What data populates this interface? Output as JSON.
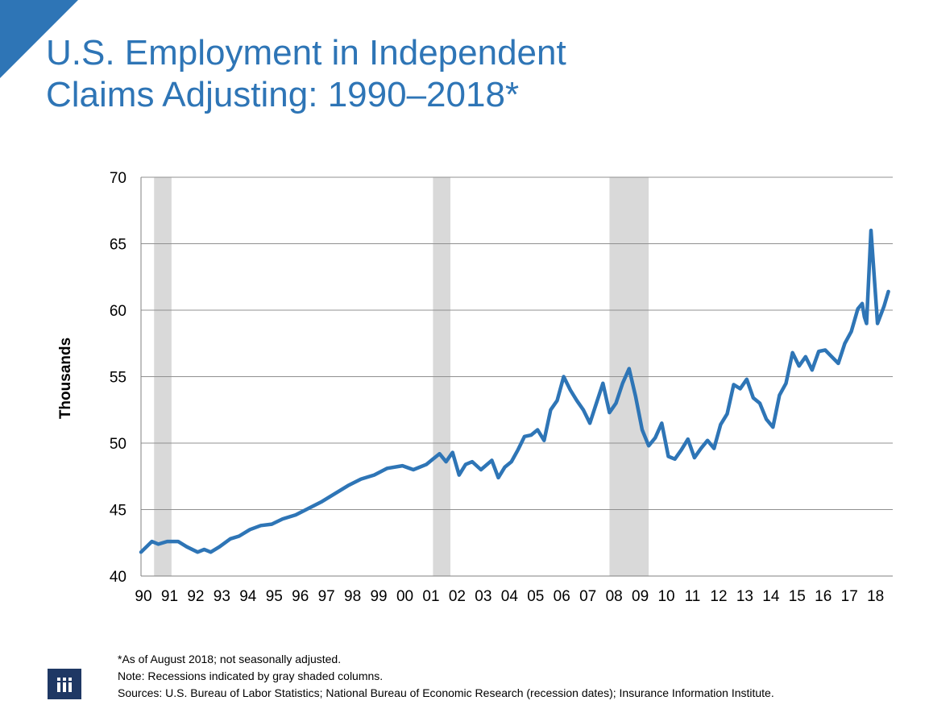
{
  "slide": {
    "title_line1": "U.S. Employment in Independent",
    "title_line2": "Claims Adjusting: 1990–2018*",
    "footnote_asof": "*As of August 2018; not seasonally adjusted.",
    "footnote_note": "Note: Recessions indicated by gray shaded columns.",
    "footnote_sources": "Sources: U.S. Bureau of Labor Statistics;  National Bureau of Economic Research (recession dates); Insurance Information Institute.",
    "accent_color": "#2e75b6",
    "corner_color": "#2e75b6",
    "logo_icon": "iii-logo-icon"
  },
  "chart_data": {
    "type": "line",
    "title": "",
    "xlabel": "",
    "ylabel": "Thousands",
    "ylim": [
      40,
      70
    ],
    "yticks": [
      40,
      45,
      50,
      55,
      60,
      65,
      70
    ],
    "x_tick_labels": [
      "90",
      "91",
      "92",
      "93",
      "94",
      "95",
      "96",
      "97",
      "98",
      "99",
      "00",
      "01",
      "02",
      "03",
      "04",
      "05",
      "06",
      "07",
      "08",
      "09",
      "10",
      "11",
      "12",
      "13",
      "14",
      "15",
      "16",
      "17",
      "18"
    ],
    "grid": true,
    "line_color": "#2e75b6",
    "recession_color": "#d9d9d9",
    "recessions": [
      {
        "start": "1990-07",
        "end": "1991-03"
      },
      {
        "start": "2001-03",
        "end": "2001-11"
      },
      {
        "start": "2007-12",
        "end": "2009-06"
      }
    ],
    "series": [
      {
        "x": [
          "1990-01",
          "1990-06",
          "1990-09",
          "1991-01",
          "1991-06",
          "1991-10",
          "1992-03",
          "1992-06",
          "1992-09",
          "1993-01",
          "1993-06",
          "1993-10",
          "1994-03",
          "1994-08",
          "1995-01",
          "1995-06",
          "1995-12",
          "1996-06",
          "1996-12",
          "1997-06",
          "1997-12",
          "1998-06",
          "1998-12",
          "1999-06",
          "2000-01",
          "2000-06",
          "2000-12",
          "2001-03",
          "2001-06",
          "2001-09",
          "2001-12",
          "2002-03",
          "2002-06",
          "2002-09",
          "2003-01",
          "2003-06",
          "2003-09",
          "2003-12",
          "2004-03",
          "2004-06",
          "2004-09",
          "2004-12",
          "2005-03",
          "2005-06",
          "2005-09",
          "2005-12",
          "2006-03",
          "2006-06",
          "2006-09",
          "2006-12",
          "2007-03",
          "2007-06",
          "2007-09",
          "2007-12",
          "2008-03",
          "2008-06",
          "2008-09",
          "2008-12",
          "2009-03",
          "2009-06",
          "2009-09",
          "2009-12",
          "2010-03",
          "2010-06",
          "2010-09",
          "2010-12",
          "2011-03",
          "2011-06",
          "2011-09",
          "2011-12",
          "2012-03",
          "2012-06",
          "2012-09",
          "2012-12",
          "2013-03",
          "2013-06",
          "2013-09",
          "2013-12",
          "2014-03",
          "2014-06",
          "2014-09",
          "2014-12",
          "2015-03",
          "2015-06",
          "2015-09",
          "2015-12",
          "2016-03",
          "2016-06",
          "2016-09",
          "2016-12",
          "2017-03",
          "2017-06",
          "2017-08",
          "2017-09",
          "2017-10",
          "2017-12",
          "2018-03",
          "2018-06",
          "2018-08"
        ],
        "y": [
          41.8,
          42.6,
          42.4,
          42.6,
          42.6,
          42.2,
          41.8,
          42.0,
          41.8,
          42.2,
          42.8,
          43.0,
          43.5,
          43.8,
          43.9,
          44.3,
          44.6,
          45.1,
          45.6,
          46.2,
          46.8,
          47.3,
          47.6,
          48.1,
          48.3,
          48.0,
          48.4,
          48.8,
          49.2,
          48.6,
          49.3,
          47.6,
          48.4,
          48.6,
          48.0,
          48.7,
          47.4,
          48.2,
          48.6,
          49.5,
          50.5,
          50.6,
          51.0,
          50.2,
          52.5,
          53.2,
          55.0,
          54.0,
          53.2,
          52.5,
          51.5,
          53.0,
          54.5,
          52.3,
          53.0,
          54.5,
          55.6,
          53.5,
          51.0,
          49.8,
          50.4,
          51.5,
          49.0,
          48.8,
          49.5,
          50.3,
          48.9,
          49.6,
          50.2,
          49.6,
          51.4,
          52.2,
          54.4,
          54.1,
          54.8,
          53.4,
          53.0,
          51.8,
          51.2,
          53.6,
          54.5,
          56.8,
          55.8,
          56.5,
          55.5,
          56.9,
          57.0,
          56.5,
          56.0,
          57.5,
          58.4,
          60.1,
          60.5,
          59.5,
          59.0,
          66.0,
          59.0,
          60.3,
          61.4
        ]
      }
    ]
  }
}
